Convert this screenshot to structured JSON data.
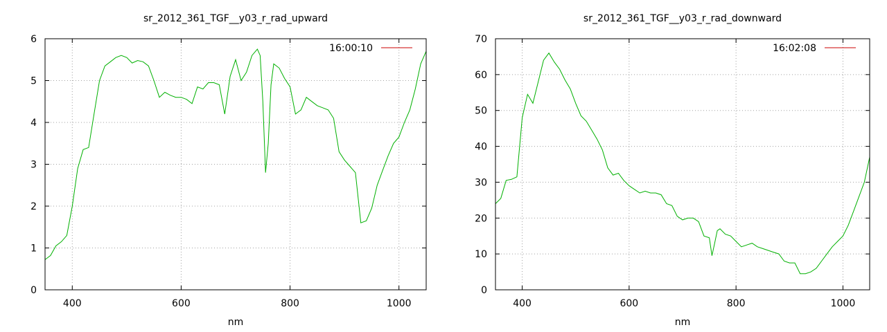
{
  "chart_data": [
    {
      "type": "line",
      "title": "sr_2012_361_TGF__y03_r_rad_upward",
      "xlabel": "nm",
      "ylabel": "",
      "xlim": [
        350,
        1050
      ],
      "ylim": [
        0,
        6
      ],
      "xticks": [
        400,
        600,
        800,
        1000
      ],
      "yticks": [
        0,
        1,
        2,
        3,
        4,
        5,
        6
      ],
      "grid": true,
      "legend_position": "top-right",
      "colors": {
        "series": "#00b000",
        "legend_line": "#cc0000"
      },
      "series": [
        {
          "name": "16:00:10",
          "x": [
            350,
            360,
            370,
            380,
            390,
            400,
            410,
            420,
            430,
            440,
            450,
            460,
            470,
            480,
            490,
            500,
            510,
            520,
            530,
            540,
            550,
            560,
            570,
            580,
            590,
            600,
            610,
            620,
            630,
            640,
            650,
            660,
            670,
            680,
            690,
            700,
            710,
            720,
            730,
            740,
            745,
            750,
            755,
            760,
            765,
            770,
            780,
            790,
            800,
            810,
            820,
            830,
            840,
            850,
            860,
            870,
            880,
            890,
            900,
            910,
            920,
            930,
            940,
            950,
            960,
            970,
            980,
            990,
            1000,
            1010,
            1020,
            1030,
            1040,
            1050
          ],
          "y": [
            0.72,
            0.82,
            1.05,
            1.15,
            1.3,
            2.0,
            2.9,
            3.35,
            3.4,
            4.2,
            5.0,
            5.35,
            5.45,
            5.55,
            5.6,
            5.55,
            5.42,
            5.48,
            5.45,
            5.35,
            5.0,
            4.6,
            4.72,
            4.65,
            4.6,
            4.6,
            4.55,
            4.45,
            4.85,
            4.8,
            4.95,
            4.95,
            4.9,
            4.2,
            5.1,
            5.5,
            5.0,
            5.2,
            5.6,
            5.75,
            5.6,
            4.5,
            2.8,
            3.5,
            4.9,
            5.4,
            5.3,
            5.05,
            4.85,
            4.2,
            4.3,
            4.6,
            4.5,
            4.4,
            4.35,
            4.3,
            4.1,
            3.3,
            3.1,
            2.95,
            2.8,
            1.6,
            1.65,
            1.95,
            2.5,
            2.85,
            3.2,
            3.5,
            3.65,
            4.0,
            4.3,
            4.8,
            5.4,
            5.7
          ]
        }
      ]
    },
    {
      "type": "line",
      "title": "sr_2012_361_TGF__y03_r_rad_downward",
      "xlabel": "nm",
      "ylabel": "",
      "xlim": [
        350,
        1050
      ],
      "ylim": [
        0,
        70
      ],
      "xticks": [
        400,
        600,
        800,
        1000
      ],
      "yticks": [
        0,
        10,
        20,
        30,
        40,
        50,
        60,
        70
      ],
      "grid": true,
      "legend_position": "top-right",
      "colors": {
        "series": "#00b000",
        "legend_line": "#cc0000"
      },
      "series": [
        {
          "name": "16:02:08",
          "x": [
            350,
            360,
            370,
            380,
            390,
            400,
            410,
            420,
            430,
            440,
            450,
            460,
            470,
            480,
            490,
            500,
            510,
            520,
            530,
            540,
            550,
            560,
            570,
            580,
            590,
            600,
            610,
            620,
            630,
            640,
            650,
            660,
            670,
            680,
            690,
            700,
            710,
            720,
            730,
            740,
            750,
            755,
            760,
            765,
            770,
            780,
            790,
            800,
            810,
            820,
            830,
            840,
            850,
            860,
            870,
            880,
            890,
            900,
            910,
            920,
            930,
            940,
            950,
            960,
            970,
            980,
            990,
            1000,
            1010,
            1020,
            1030,
            1040,
            1050
          ],
          "y": [
            24,
            25.5,
            30.5,
            30.8,
            31.5,
            48,
            54.5,
            52,
            58,
            64,
            66,
            63.5,
            61.5,
            58.5,
            56,
            52,
            48.5,
            47,
            44.5,
            42,
            39,
            34,
            32,
            32.5,
            30.5,
            29,
            28,
            27,
            27.5,
            27,
            27,
            26.5,
            24,
            23.5,
            20.5,
            19.5,
            20,
            20,
            19,
            15,
            14.5,
            9.5,
            13,
            16.5,
            17,
            15.5,
            15,
            13.5,
            12,
            12.5,
            13,
            12,
            11.5,
            11,
            10.5,
            10,
            8,
            7.5,
            7.5,
            4.5,
            4.5,
            5,
            6,
            8,
            10,
            12,
            13.5,
            15,
            18,
            22,
            26,
            30,
            37
          ]
        }
      ]
    }
  ]
}
